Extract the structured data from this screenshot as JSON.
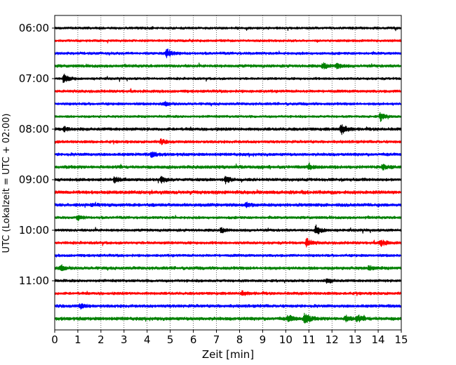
{
  "chart_data": {
    "type": "line",
    "title": "",
    "xlabel": "Zeit  [min]",
    "ylabel": "UTC (Lokalzeit = UTC + 02:00)",
    "xlim": [
      0,
      15
    ],
    "x_ticks": [
      "0",
      "1",
      "2",
      "3",
      "4",
      "5",
      "6",
      "7",
      "8",
      "9",
      "10",
      "11",
      "12",
      "13",
      "14",
      "15"
    ],
    "y_ticks": [
      "06:00",
      "07:00",
      "08:00",
      "09:00",
      "10:00",
      "11:00"
    ],
    "grid": "vertical dotted lines at each minute",
    "trace_minutes": 15,
    "trace_colors_cycle": [
      "#000000",
      "#ff0000",
      "#0000ff",
      "#008000"
    ],
    "traces": [
      {
        "start": "06:00",
        "color": "#000000",
        "amplitude": 2.0,
        "events": []
      },
      {
        "start": "06:15",
        "color": "#ff0000",
        "amplitude": 2.0,
        "events": []
      },
      {
        "start": "06:30",
        "color": "#0000ff",
        "amplitude": 2.2,
        "events": [
          {
            "t": 4.85,
            "amp": 6
          }
        ]
      },
      {
        "start": "06:45",
        "color": "#008000",
        "amplitude": 2.4,
        "events": [
          {
            "t": 11.6,
            "amp": 4
          },
          {
            "t": 12.2,
            "amp": 4
          }
        ]
      },
      {
        "start": "07:00",
        "color": "#000000",
        "amplitude": 2.0,
        "events": [
          {
            "t": 0.4,
            "amp": 8
          }
        ]
      },
      {
        "start": "07:15",
        "color": "#ff0000",
        "amplitude": 2.3,
        "events": []
      },
      {
        "start": "07:30",
        "color": "#0000ff",
        "amplitude": 2.2,
        "events": [
          {
            "t": 4.8,
            "amp": 3
          }
        ]
      },
      {
        "start": "07:45",
        "color": "#008000",
        "amplitude": 2.0,
        "events": [
          {
            "t": 14.1,
            "amp": 6
          }
        ]
      },
      {
        "start": "08:00",
        "color": "#000000",
        "amplitude": 2.5,
        "events": [
          {
            "t": 12.4,
            "amp": 8
          },
          {
            "t": 0.4,
            "amp": 3
          }
        ]
      },
      {
        "start": "08:15",
        "color": "#ff0000",
        "amplitude": 2.3,
        "events": [
          {
            "t": 4.6,
            "amp": 3
          }
        ]
      },
      {
        "start": "08:30",
        "color": "#0000ff",
        "amplitude": 2.5,
        "events": [
          {
            "t": 4.2,
            "amp": 4
          }
        ]
      },
      {
        "start": "08:45",
        "color": "#008000",
        "amplitude": 2.6,
        "events": [
          {
            "t": 14.2,
            "amp": 3
          },
          {
            "t": 11.0,
            "amp": 3
          }
        ]
      },
      {
        "start": "09:00",
        "color": "#000000",
        "amplitude": 2.4,
        "events": [
          {
            "t": 2.6,
            "amp": 5
          },
          {
            "t": 7.4,
            "amp": 5
          },
          {
            "t": 4.6,
            "amp": 4
          }
        ]
      },
      {
        "start": "09:15",
        "color": "#ff0000",
        "amplitude": 2.8,
        "events": []
      },
      {
        "start": "09:30",
        "color": "#0000ff",
        "amplitude": 2.7,
        "events": [
          {
            "t": 8.3,
            "amp": 3
          }
        ]
      },
      {
        "start": "09:45",
        "color": "#008000",
        "amplitude": 2.2,
        "events": [
          {
            "t": 1.0,
            "amp": 3
          }
        ]
      },
      {
        "start": "10:00",
        "color": "#000000",
        "amplitude": 2.2,
        "events": [
          {
            "t": 11.3,
            "amp": 7
          },
          {
            "t": 7.2,
            "amp": 3
          }
        ]
      },
      {
        "start": "10:15",
        "color": "#ff0000",
        "amplitude": 2.3,
        "events": [
          {
            "t": 10.9,
            "amp": 6
          },
          {
            "t": 14.1,
            "amp": 5
          }
        ]
      },
      {
        "start": "10:30",
        "color": "#0000ff",
        "amplitude": 2.2,
        "events": []
      },
      {
        "start": "10:45",
        "color": "#008000",
        "amplitude": 2.5,
        "events": [
          {
            "t": 0.3,
            "amp": 4
          },
          {
            "t": 13.6,
            "amp": 3
          }
        ]
      },
      {
        "start": "11:00",
        "color": "#000000",
        "amplitude": 2.2,
        "events": [
          {
            "t": 11.8,
            "amp": 3
          }
        ]
      },
      {
        "start": "11:15",
        "color": "#ff0000",
        "amplitude": 2.3,
        "events": [
          {
            "t": 8.1,
            "amp": 3
          }
        ]
      },
      {
        "start": "11:30",
        "color": "#0000ff",
        "amplitude": 2.5,
        "events": [
          {
            "t": 1.1,
            "amp": 3
          }
        ]
      },
      {
        "start": "11:45",
        "color": "#008000",
        "amplitude": 2.8,
        "events": [
          {
            "t": 10.8,
            "amp": 9
          },
          {
            "t": 10.1,
            "amp": 5
          },
          {
            "t": 12.6,
            "amp": 4
          },
          {
            "t": 13.1,
            "amp": 4
          }
        ]
      }
    ]
  }
}
